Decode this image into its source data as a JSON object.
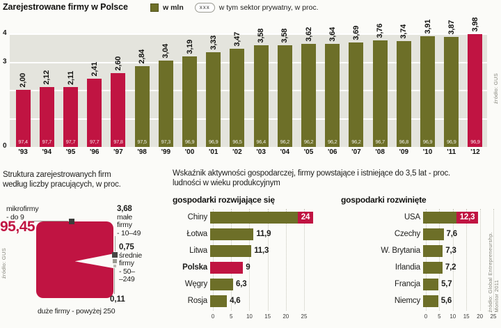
{
  "colors": {
    "olive": "#6d6f28",
    "red": "#c01442",
    "badge_text": "#ffffff",
    "plot_bg": "#e4e4dd",
    "page_bg": "#fbfbf8"
  },
  "chart_data": [
    {
      "id": "registered-companies-poland",
      "type": "bar",
      "title": "Zarejestrowane firmy w Polsce",
      "legend": {
        "swatch_label": "w mln",
        "box_label": "xxx",
        "box_desc": "w tym sektor prywatny, w proc."
      },
      "source": "źródło: GUS",
      "ylim": [
        0,
        4
      ],
      "y_ticks": [
        "4",
        "3",
        "0"
      ],
      "points": [
        {
          "year": "'93",
          "value": 2.0,
          "value_label": "2,00",
          "private_pct": "97,4",
          "highlight": true
        },
        {
          "year": "'94",
          "value": 2.12,
          "value_label": "2,12",
          "private_pct": "97,7",
          "highlight": true
        },
        {
          "year": "'95",
          "value": 2.11,
          "value_label": "2,11",
          "private_pct": "97,7",
          "highlight": true
        },
        {
          "year": "'96",
          "value": 2.41,
          "value_label": "2,41",
          "private_pct": "97,7",
          "highlight": true
        },
        {
          "year": "'97",
          "value": 2.6,
          "value_label": "2,60",
          "private_pct": "97,8",
          "highlight": true
        },
        {
          "year": "'98",
          "value": 2.84,
          "value_label": "2,84",
          "private_pct": "97,5",
          "highlight": false
        },
        {
          "year": "'99",
          "value": 3.04,
          "value_label": "3,04",
          "private_pct": "97,3",
          "highlight": false
        },
        {
          "year": "'00",
          "value": 3.19,
          "value_label": "3,19",
          "private_pct": "96,9",
          "highlight": false
        },
        {
          "year": "'01",
          "value": 3.33,
          "value_label": "3,33",
          "private_pct": "96,9",
          "highlight": false
        },
        {
          "year": "'02",
          "value": 3.47,
          "value_label": "3,47",
          "private_pct": "96,5",
          "highlight": false
        },
        {
          "year": "'03",
          "value": 3.58,
          "value_label": "3,58",
          "private_pct": "96,4",
          "highlight": false
        },
        {
          "year": "'04",
          "value": 3.58,
          "value_label": "3,58",
          "private_pct": "96,2",
          "highlight": false
        },
        {
          "year": "'05",
          "value": 3.62,
          "value_label": "3,62",
          "private_pct": "96,2",
          "highlight": false
        },
        {
          "year": "'06",
          "value": 3.64,
          "value_label": "3,64",
          "private_pct": "96,2",
          "highlight": false
        },
        {
          "year": "'07",
          "value": 3.69,
          "value_label": "3,69",
          "private_pct": "96,2",
          "highlight": false
        },
        {
          "year": "'08",
          "value": 3.76,
          "value_label": "3,76",
          "private_pct": "96,7",
          "highlight": false
        },
        {
          "year": "'09",
          "value": 3.74,
          "value_label": "3,74",
          "private_pct": "96,8",
          "highlight": false
        },
        {
          "year": "'10",
          "value": 3.91,
          "value_label": "3,91",
          "private_pct": "96,9",
          "highlight": false
        },
        {
          "year": "'11",
          "value": 3.87,
          "value_label": "3,87",
          "private_pct": "96,9",
          "highlight": false
        },
        {
          "year": "'12",
          "value": 3.98,
          "value_label": "3,98",
          "private_pct": "96,9",
          "highlight": true
        }
      ]
    },
    {
      "id": "company-size-structure",
      "type": "pie",
      "title": "Struktura zarejestrowanych firm według liczby pracujących, w proc.",
      "title_lines": [
        "Struktura zarejestrowanych firm",
        "według liczby pracujących, w proc."
      ],
      "source": "źródło: GUS",
      "slices": [
        {
          "label": "mikrofirmy - do 9",
          "value": 95.45,
          "value_label": "95,45"
        },
        {
          "label": "małe firmy - 10–49",
          "value": 3.68,
          "value_label": "3,68"
        },
        {
          "label": "średnie firmy - 50–249",
          "value": 0.75,
          "value_label": "0,75"
        },
        {
          "label": "duże firmy - powyżej 250",
          "value": 0.11,
          "value_label": "0,11"
        }
      ]
    },
    {
      "id": "entrepreneurial-activity-developing",
      "type": "bar",
      "title": "gospodarki rozwijające się",
      "xlim": [
        0,
        25
      ],
      "x_ticks": [
        "0",
        "5",
        "10",
        "15",
        "20",
        "25"
      ],
      "rows": [
        {
          "label": "Chiny",
          "value": 24,
          "value_label": "24",
          "badge": true,
          "highlight": false
        },
        {
          "label": "Łotwa",
          "value": 11.9,
          "value_label": "11,9",
          "badge": false,
          "highlight": false
        },
        {
          "label": "Litwa",
          "value": 11.3,
          "value_label": "11,3",
          "badge": false,
          "highlight": false
        },
        {
          "label": "Polska",
          "value": 9,
          "value_label": "9",
          "badge": false,
          "highlight": true
        },
        {
          "label": "Węgry",
          "value": 6.3,
          "value_label": "6,3",
          "badge": false,
          "highlight": false
        },
        {
          "label": "Rosja",
          "value": 4.6,
          "value_label": "4,6",
          "badge": false,
          "highlight": false
        }
      ]
    },
    {
      "id": "entrepreneurial-activity-developed",
      "type": "bar",
      "title": "gospodarki rozwinięte",
      "xlim": [
        0,
        25
      ],
      "x_ticks": [
        "0",
        "5",
        "10",
        "15",
        "20",
        "25"
      ],
      "rows": [
        {
          "label": "USA",
          "value": 12.3,
          "value_label": "12,3",
          "badge": true,
          "highlight": false
        },
        {
          "label": "Czechy",
          "value": 7.6,
          "value_label": "7,6",
          "badge": false,
          "highlight": false
        },
        {
          "label": "W. Brytania",
          "value": 7.3,
          "value_label": "7,3",
          "badge": false,
          "highlight": false
        },
        {
          "label": "Irlandia",
          "value": 7.2,
          "value_label": "7,2",
          "badge": false,
          "highlight": false
        },
        {
          "label": "Francja",
          "value": 5.7,
          "value_label": "5,7",
          "badge": false,
          "highlight": false
        },
        {
          "label": "Niemcy",
          "value": 5.6,
          "value_label": "5,6",
          "badge": false,
          "highlight": false
        }
      ]
    }
  ],
  "activity_header": {
    "title_line1": "Wskaźnik aktywności gospodarczej, firmy powstające i istniejące do 3,5 lat - proc.",
    "title_line2": "ludności w wieku produkcyjnym",
    "source_line1": "źródło: Global Entrepreneurshp.",
    "source_line2": "Monitor 2011"
  },
  "structure_callouts": {
    "micro_line1": "mikrofirmy",
    "micro_line2": "- do 9",
    "small_line1": "małe",
    "small_line2": "firmy",
    "small_line3": "- 10–49",
    "medium_line1": "średnie",
    "medium_line2": "firmy",
    "medium_line3": "- 50–",
    "medium_line4": "–249",
    "large_label": "duże firmy - powyżej 250"
  }
}
